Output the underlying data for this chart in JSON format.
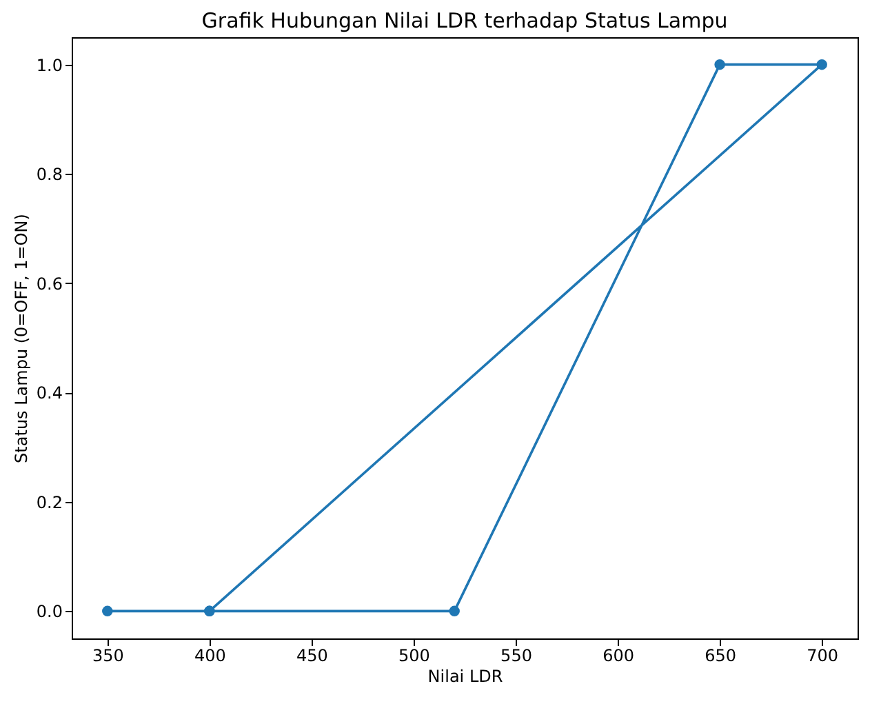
{
  "chart_data": {
    "type": "line",
    "title": "Grafik Hubungan Nilai LDR terhadap Status Lampu",
    "xlabel": "Nilai LDR",
    "ylabel": "Status Lampu (0=OFF, 1=ON)",
    "x": [
      350,
      400,
      520,
      650,
      700,
      400
    ],
    "series": [
      {
        "color": "#1f77b4",
        "values": [
          0,
          0,
          0,
          1,
          1,
          0
        ]
      }
    ],
    "xlim": [
      332.5,
      717.5
    ],
    "xticks": [
      350,
      400,
      450,
      500,
      550,
      600,
      650,
      700
    ],
    "ylim": [
      -0.05,
      1.05
    ],
    "yticks": [
      {
        "value": 0,
        "label": "0.0"
      },
      {
        "value": 0.2,
        "label": "0.2"
      },
      {
        "value": 0.4,
        "label": "0.4"
      },
      {
        "value": 0.6,
        "label": "0.6"
      },
      {
        "value": 0.8,
        "label": "0.8"
      },
      {
        "value": 1,
        "label": "1.0"
      }
    ],
    "marker": "circle",
    "line_style": "solid"
  }
}
